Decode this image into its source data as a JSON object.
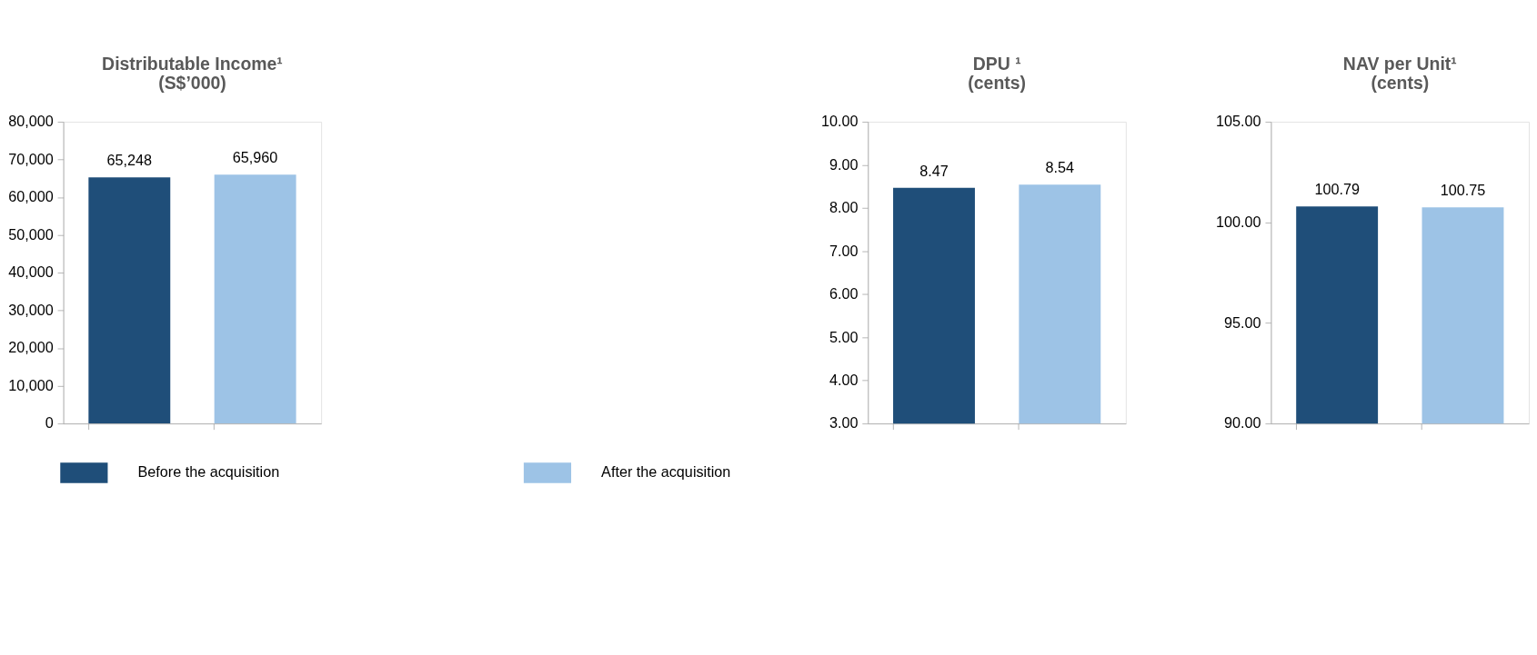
{
  "chart_data": [
    {
      "type": "bar",
      "title": "Distributable Income¹\n(S$’000)",
      "categories": [
        null,
        null
      ],
      "series": [
        {
          "name": "Before the acquisition",
          "color": "#1f4e79",
          "values": [
            65248,
            null
          ]
        },
        {
          "name": "After the acquisition",
          "color": "#9dc3e6",
          "values": [
            null,
            65960
          ]
        }
      ],
      "ylim": [
        0,
        80000
      ],
      "yticks": [
        0,
        {
          "value": 10000,
          "label": "10,000"
        },
        {
          "value": 20000,
          "label": "20,000"
        },
        {
          "value": 30000,
          "label": "30,000"
        },
        {
          "value": 40000,
          "label": "40,000"
        },
        {
          "value": 50000,
          "label": "50,000"
        },
        {
          "value": 60000,
          "label": "60,000"
        },
        {
          "value": 70000,
          "label": "70,000"
        },
        {
          "value": 80000,
          "label": "80,000"
        }
      ],
      "value_labels": [
        "65,248",
        "65,960"
      ],
      "grid": false,
      "legend": "bottom",
      "tick_labels": "y"
    },
    {
      "type": "bar",
      "title": "DPU ¹\n(cents)",
      "categories": [
        null,
        null
      ],
      "series": [
        {
          "color": "#1f4e79",
          "values": [
            8.47,
            null
          ]
        },
        {
          "color": "#9dc3e6",
          "values": [
            null,
            8.54
          ]
        }
      ],
      "ylim": [
        3,
        10
      ],
      "yticks": [
        {
          "value": 3,
          "label": "3.00"
        },
        {
          "value": 4,
          "label": "4.00"
        },
        {
          "value": 5,
          "label": "5.00"
        },
        {
          "value": 6,
          "label": "6.00"
        },
        {
          "value": 7,
          "label": "7.00"
        },
        {
          "value": 8,
          "label": "8.00"
        },
        {
          "value": 9,
          "label": "9.00"
        },
        {
          "value": 10,
          "label": "10.00"
        }
      ],
      "data_labels": true,
      "grid": false,
      "tick_labels": "y"
    },
    {
      "type": "bar",
      "title": "NAV per Unit¹\n(cents)",
      "categories": [
        null,
        null
      ],
      "series": [
        {
          "color": "#1f4e79",
          "values": [
            100.79,
            null
          ]
        },
        {
          "color": "#9dc3e6",
          "values": [
            null,
            100.75
          ]
        }
      ],
      "ylim": [
        90,
        105
      ],
      "yticks": [
        {
          "value": 90,
          "label": "90.00"
        },
        {
          "value": 95,
          "label": "95.00"
        },
        {
          "value": 100,
          "label": "100.00"
        },
        {
          "value": 105,
          "label": "105.00"
        }
      ],
      "data_labels": true,
      "grid": false,
      "tick_labels": "y"
    }
  ]
}
